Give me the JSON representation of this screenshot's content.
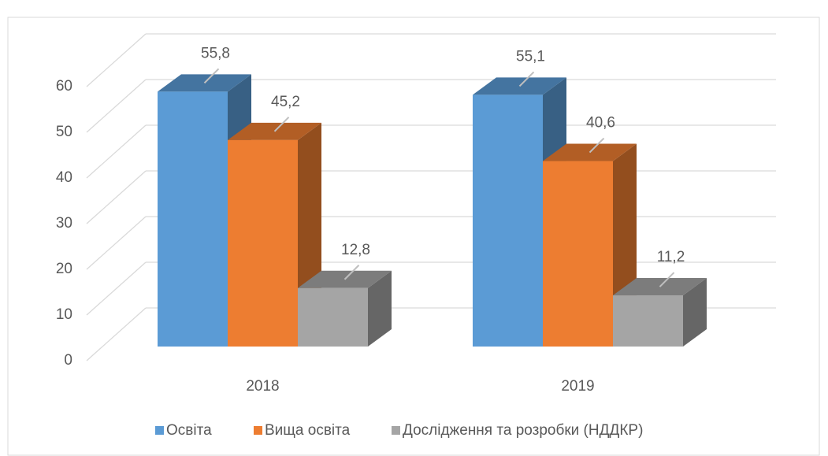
{
  "chart_data": {
    "type": "bar3d",
    "categories": [
      "2018",
      "2019"
    ],
    "series": [
      {
        "name": "Освіта",
        "color": "#5b9bd5",
        "values": [
          55.8,
          55.1
        ],
        "value_labels": [
          "55,8",
          "55,1"
        ]
      },
      {
        "name": "Вища освіта",
        "color": "#ed7d31",
        "values": [
          45.2,
          40.6
        ],
        "value_labels": [
          "45,2",
          "40,6"
        ]
      },
      {
        "name": "Дослідження та розробки (НДДКР)",
        "color": "#a5a5a5",
        "values": [
          12.8,
          11.2
        ],
        "value_labels": [
          "12,8",
          "11,2"
        ]
      }
    ],
    "ylim": [
      0,
      60
    ],
    "yticks": [
      0,
      10,
      20,
      30,
      40,
      50,
      60
    ],
    "grid": true,
    "legend": "bottom"
  }
}
